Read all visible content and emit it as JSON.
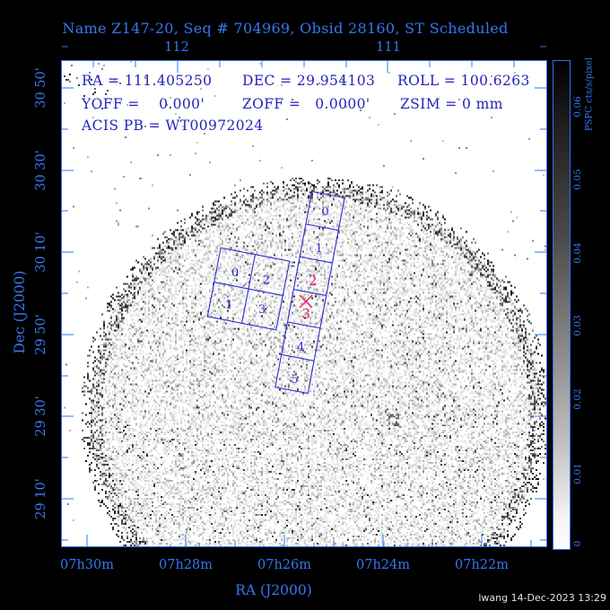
{
  "header": {
    "title": "Name Z147-20, Seq # 704969, Obsid 28160, ST Scheduled"
  },
  "info_overlay": {
    "row1": [
      "RA = 111.405250",
      "DEC = 29.954103",
      "ROLL = 100.6263"
    ],
    "row2": [
      "YOFF =    0.000'",
      "ZOFF =   0.0000'",
      "ZSIM = 0 mm"
    ],
    "row3": "ACIS PB = WT00972024"
  },
  "axes": {
    "top_labels": [
      "112",
      "111"
    ],
    "bottom_labels": [
      "07h30m",
      "07h28m",
      "07h26m",
      "07h24m",
      "07h22m"
    ],
    "left_labels": [
      "30 50'",
      "30 30'",
      "30 10'",
      "29 50'",
      "29 30'",
      "29 10'"
    ],
    "x_title": "RA (J2000)",
    "y_title": "Dec (J2000)"
  },
  "detectors": {
    "acis_i_labels": [
      "0",
      "2",
      "1",
      "3"
    ],
    "acis_s_labels": [
      "0",
      "1",
      "2",
      "3",
      "4",
      "5"
    ],
    "acis_s_active_chips": [
      "2",
      "3"
    ]
  },
  "colorbar": {
    "title": "PSPC cts/s/pixel",
    "tick_labels": [
      "0.06",
      "0.05",
      "0.04",
      "0.03",
      "0.02",
      "0.01",
      "0"
    ]
  },
  "footer": {
    "credit": "lwang 14-Dec-2023 13:29"
  },
  "colors": {
    "frame_blue": "#2e74f0",
    "label_blue": "#3577f0",
    "info_navy": "#2323bb",
    "chip_blue": "#2b2bd6",
    "active_magenta": "#e6197d",
    "marker_red": "#c53222",
    "background": "#000000",
    "field_white": "#ffffff"
  }
}
